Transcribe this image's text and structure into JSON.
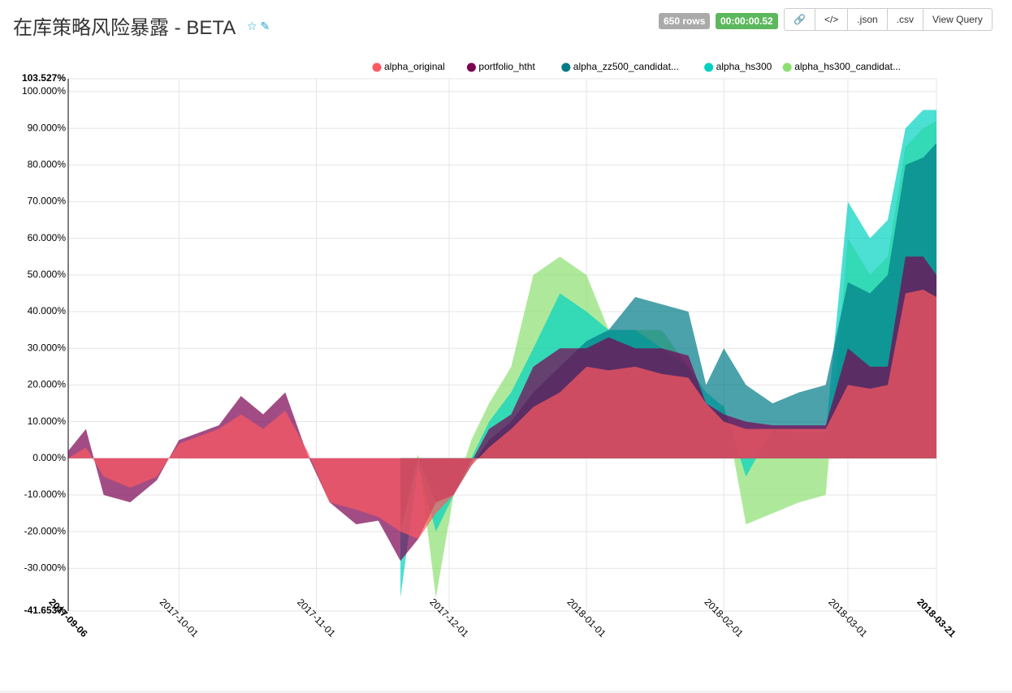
{
  "header": {
    "title": "在库策略风险暴露 - BETA",
    "rows_badge": "650 rows",
    "time_badge": "00:00:00.52",
    "buttons": [
      ".json",
      ".csv",
      "View Query"
    ]
  },
  "chart_data": {
    "type": "area",
    "legend": "top-right",
    "grid": true,
    "x": [
      "2017-09-06",
      "2017-09-10",
      "2017-09-14",
      "2017-09-20",
      "2017-09-26",
      "2017-10-01",
      "2017-10-10",
      "2017-10-15",
      "2017-10-20",
      "2017-10-25",
      "2017-10-30",
      "2017-11-04",
      "2017-11-10",
      "2017-11-15",
      "2017-11-20",
      "2017-11-24",
      "2017-11-28",
      "2017-12-02",
      "2017-12-06",
      "2017-12-10",
      "2017-12-15",
      "2017-12-20",
      "2017-12-26",
      "2018-01-01",
      "2018-01-06",
      "2018-01-12",
      "2018-01-18",
      "2018-01-24",
      "2018-01-28",
      "2018-02-01",
      "2018-02-06",
      "2018-02-12",
      "2018-02-18",
      "2018-02-24",
      "2018-03-01",
      "2018-03-06",
      "2018-03-10",
      "2018-03-14",
      "2018-03-18",
      "2018-03-21"
    ],
    "xlim": [
      "2017-09-06",
      "2018-03-21"
    ],
    "xticks": [
      "2017-09-06",
      "2017-10-01",
      "2017-11-01",
      "2017-12-01",
      "2018-01-01",
      "2018-02-01",
      "2018-03-01",
      "2018-03-21"
    ],
    "ylim": [
      -41.653,
      103.527
    ],
    "yticks": [
      {
        "value": -41.653,
        "label": "-41.653%"
      },
      {
        "value": -30,
        "label": "-30.000%"
      },
      {
        "value": -20,
        "label": "-20.000%"
      },
      {
        "value": -10,
        "label": "-10.000%"
      },
      {
        "value": 0,
        "label": "0.000%"
      },
      {
        "value": 10,
        "label": "10.000%"
      },
      {
        "value": 20,
        "label": "20.000%"
      },
      {
        "value": 30,
        "label": "30.000%"
      },
      {
        "value": 40,
        "label": "40.000%"
      },
      {
        "value": 50,
        "label": "50.000%"
      },
      {
        "value": 60,
        "label": "60.000%"
      },
      {
        "value": 70,
        "label": "70.000%"
      },
      {
        "value": 80,
        "label": "80.000%"
      },
      {
        "value": 90,
        "label": "90.000%"
      },
      {
        "value": 100,
        "label": "100.000%"
      },
      {
        "value": 103.527,
        "label": "103.527%"
      }
    ],
    "series": [
      {
        "name": "alpha_original",
        "color": "#ff5a5f",
        "values": [
          0,
          3,
          -5,
          -8,
          -5,
          4,
          8,
          12,
          8,
          13,
          2,
          -12,
          -14,
          -16,
          -20,
          -22,
          -15,
          -10,
          -2,
          3,
          8,
          14,
          18,
          25,
          24,
          25,
          23,
          22,
          15,
          10,
          8,
          8,
          8,
          8,
          20,
          19,
          20,
          45,
          46,
          44
        ]
      },
      {
        "name": "portfolio_htht",
        "color": "#7b0051",
        "values": [
          2,
          8,
          -10,
          -12,
          -6,
          5,
          9,
          17,
          12,
          18,
          1,
          -12,
          -18,
          -17,
          -28,
          -22,
          -12,
          -10,
          -1,
          8,
          12,
          25,
          30,
          30,
          33,
          30,
          30,
          28,
          15,
          12,
          10,
          9,
          9,
          9,
          30,
          25,
          25,
          55,
          55,
          50
        ]
      },
      {
        "name": "alpha_zz500_candidat...",
        "color": "#007a87",
        "values": [
          null,
          null,
          null,
          null,
          null,
          null,
          null,
          null,
          null,
          null,
          null,
          null,
          null,
          null,
          -20,
          0,
          -12,
          -10,
          -2,
          5,
          10,
          18,
          25,
          32,
          35,
          44,
          42,
          40,
          20,
          30,
          20,
          15,
          18,
          20,
          48,
          45,
          50,
          80,
          82,
          86
        ]
      },
      {
        "name": "alpha_hs300",
        "color": "#00d1c1",
        "values": [
          null,
          null,
          null,
          null,
          null,
          null,
          null,
          null,
          null,
          null,
          null,
          null,
          null,
          null,
          -38,
          -2,
          -20,
          -10,
          0,
          10,
          18,
          30,
          45,
          40,
          35,
          35,
          30,
          25,
          18,
          14,
          -5,
          8,
          7,
          7,
          70,
          60,
          65,
          90,
          95,
          95
        ]
      },
      {
        "name": "alpha_hs300_candidat...",
        "color": "#8ce071",
        "values": [
          null,
          null,
          null,
          null,
          null,
          null,
          null,
          null,
          null,
          null,
          null,
          null,
          null,
          null,
          -10,
          1,
          -38,
          -10,
          5,
          15,
          25,
          50,
          55,
          50,
          35,
          35,
          35,
          25,
          5,
          15,
          -18,
          -15,
          -12,
          -10,
          60,
          50,
          55,
          85,
          90,
          92
        ]
      }
    ]
  }
}
